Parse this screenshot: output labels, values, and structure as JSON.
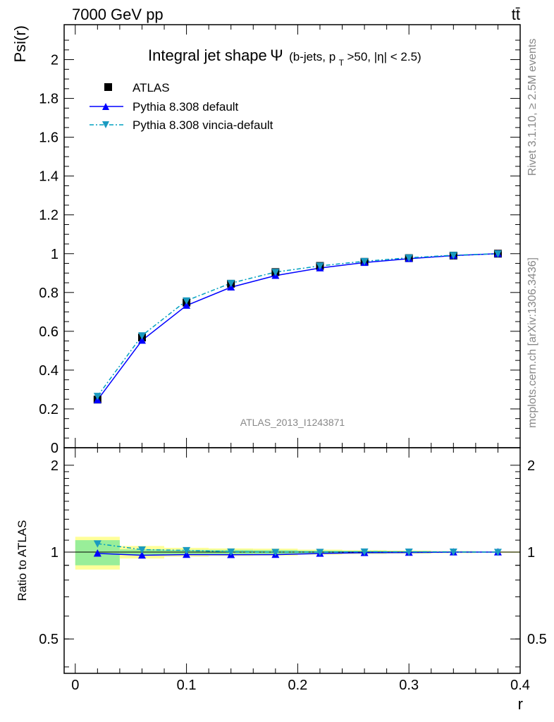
{
  "header": {
    "energy_label": "7000 GeV pp",
    "process_label": "tt̄"
  },
  "side": {
    "rivet_label": "Rivet 3.1.10, ≥ 2.5M events",
    "source_label": "mcplots.cern.ch [arXiv:1306.3436]"
  },
  "chart_data": {
    "type": "line",
    "title_main": "Integral jet shape",
    "title_symbol": "Ψ",
    "title_sub_pre": "(b-jets, p",
    "title_sub_sub": "T",
    "title_sub_post": ">50, |η| < 2.5)",
    "watermark": "ATLAS_2013_I1243871",
    "xlabel": "r",
    "ylabel": "Psi(r)",
    "ratio_ylabel": "Ratio to ATLAS",
    "xlim": [
      -0.01,
      0.4
    ],
    "ylim": [
      0,
      2.18
    ],
    "ratio_ylim": [
      0.38,
      2.3
    ],
    "x_ticks": [
      "0",
      "0.1",
      "0.2",
      "0.3",
      "0.4"
    ],
    "y_ticks": [
      "0",
      "0.2",
      "0.4",
      "0.6",
      "0.8",
      "1",
      "1.2",
      "1.4",
      "1.6",
      "1.8",
      "2"
    ],
    "ratio_y_ticks": [
      "0.5",
      "1",
      "2"
    ],
    "x": [
      0.02,
      0.06,
      0.1,
      0.14,
      0.18,
      0.22,
      0.26,
      0.3,
      0.34,
      0.38
    ],
    "bin_edges": [
      0.0,
      0.04,
      0.08,
      0.12,
      0.16,
      0.2,
      0.24,
      0.28,
      0.32,
      0.36,
      0.4
    ],
    "series": [
      {
        "name": "ATLAS",
        "color": "#000000",
        "marker": "square",
        "values": [
          0.248,
          0.568,
          0.748,
          0.845,
          0.905,
          0.937,
          0.958,
          0.977,
          0.99,
          1.0
        ],
        "band_inner": [
          0.1,
          0.022,
          0.018,
          0.018,
          0.016,
          0.012,
          0.01,
          0.008,
          0.005,
          0.003
        ],
        "band_outer": [
          0.13,
          0.05,
          0.035,
          0.03,
          0.028,
          0.02,
          0.015,
          0.012,
          0.008,
          0.005
        ],
        "ratio": [
          1.0,
          1.0,
          1.0,
          1.0,
          1.0,
          1.0,
          1.0,
          1.0,
          1.0,
          1.0
        ]
      },
      {
        "name": "Pythia 8.308 default",
        "color": "#0000ff",
        "marker": "triangle-up",
        "values": [
          0.246,
          0.553,
          0.733,
          0.827,
          0.887,
          0.926,
          0.954,
          0.974,
          0.99,
          1.0
        ],
        "ratio": [
          0.99,
          0.975,
          0.98,
          0.979,
          0.98,
          0.989,
          0.995,
          0.997,
          1.0,
          1.0
        ]
      },
      {
        "name": "Pythia 8.308 vincia-default",
        "color": "#00a0c0",
        "marker": "triangle-down",
        "values": [
          0.266,
          0.578,
          0.758,
          0.848,
          0.905,
          0.937,
          0.961,
          0.979,
          0.992,
          1.0
        ],
        "ratio": [
          1.07,
          1.02,
          1.014,
          1.003,
          1.0,
          1.0,
          1.003,
          1.002,
          1.002,
          1.0
        ]
      }
    ]
  }
}
